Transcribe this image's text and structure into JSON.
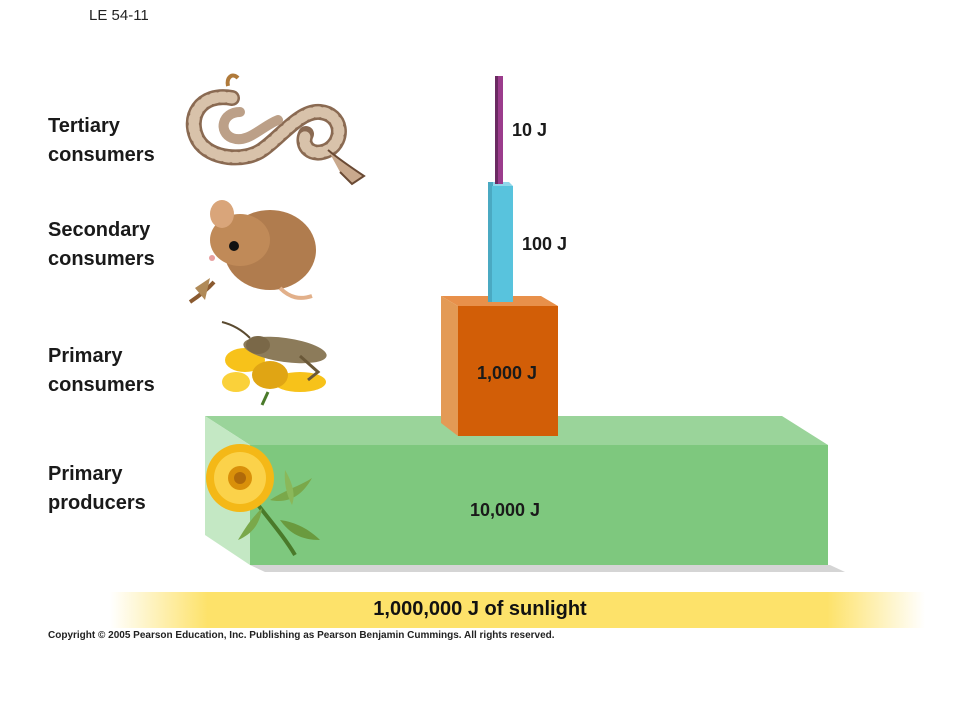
{
  "slide_id": "LE 54-11",
  "levels": [
    {
      "line1": "Tertiary",
      "line2": "consumers",
      "energy": "10 J",
      "organism_icon": "snake-icon"
    },
    {
      "line1": "Secondary",
      "line2": "consumers",
      "energy": "100 J",
      "organism_icon": "mouse-icon"
    },
    {
      "line1": "Primary",
      "line2": "consumers",
      "energy": "1,000 J",
      "organism_icon": "grasshopper-icon"
    },
    {
      "line1": "Primary",
      "line2": "producers",
      "energy": "10,000 J",
      "organism_icon": "flower-plant-icon"
    }
  ],
  "sunlight_label": "1,000,000 J of sunlight",
  "copyright": "Copyright © 2005 Pearson Education, Inc. Publishing as Pearson Benjamin Cummings. All rights reserved.",
  "colors": {
    "producers": "#7ec87e",
    "primary_consumers": "#d25e07",
    "secondary_consumers": "#58c3dd",
    "tertiary_consumers": "#9b3c8c",
    "sunlight": "#fde26a"
  }
}
